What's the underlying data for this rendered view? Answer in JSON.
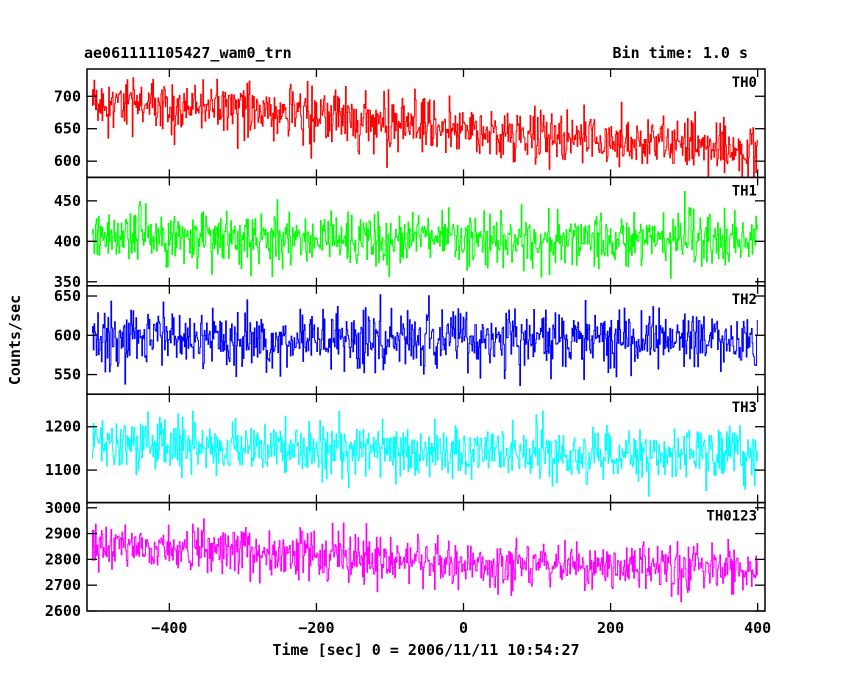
{
  "header": {
    "left_title": "ae061111105427_wam0_trn",
    "right_title": "Bin time: 1.0 s"
  },
  "chart_data": {
    "type": "line",
    "title": "ae061111105427_wam0_trn",
    "subtitle": "Bin time: 1.0 s",
    "xlabel": "Time [sec] 0 = 2006/11/11 10:54:27",
    "ylabel": "Counts/sec",
    "xlim": [
      -512,
      410
    ],
    "x_ticks": [
      -400,
      -200,
      0,
      200,
      400
    ],
    "x_tick_labels": [
      "−400",
      "−200",
      "0",
      "200",
      "400"
    ],
    "data_x_range": [
      -505,
      400
    ],
    "bin_time_sec": 1.0,
    "grid": false,
    "panels": [
      {
        "name": "TH0",
        "color": "#ff0000",
        "ylim": [
          575,
          742
        ],
        "y_ticks": [
          600,
          650,
          700
        ],
        "trend": [
          [
            -505,
            690
          ],
          [
            -300,
            680
          ],
          [
            -100,
            660
          ],
          [
            100,
            640
          ],
          [
            400,
            615
          ]
        ],
        "noise": 36
      },
      {
        "name": "TH1",
        "color": "#00ff00",
        "ylim": [
          345,
          479
        ],
        "y_ticks": [
          350,
          400,
          450
        ],
        "trend": [
          [
            -505,
            408
          ],
          [
            0,
            400
          ],
          [
            400,
            404
          ]
        ],
        "noise": 30
      },
      {
        "name": "TH2",
        "color": "#0000ff",
        "ylim": [
          525,
          663
        ],
        "y_ticks": [
          550,
          600,
          650
        ],
        "trend": [
          [
            -505,
            595
          ],
          [
            0,
            595
          ],
          [
            400,
            595
          ]
        ],
        "noise": 34
      },
      {
        "name": "TH3",
        "color": "#00ffff",
        "ylim": [
          1025,
          1275
        ],
        "y_ticks": [
          1100,
          1200
        ],
        "trend": [
          [
            -505,
            1160
          ],
          [
            0,
            1140
          ],
          [
            400,
            1135
          ]
        ],
        "noise": 55
      },
      {
        "name": "TH0123",
        "color": "#ff00ff",
        "ylim": [
          2600,
          3020
        ],
        "y_ticks": [
          2600,
          2700,
          2800,
          2900,
          3000
        ],
        "trend": [
          [
            -505,
            2860
          ],
          [
            -200,
            2820
          ],
          [
            0,
            2780
          ],
          [
            400,
            2760
          ]
        ],
        "noise": 85
      }
    ]
  }
}
